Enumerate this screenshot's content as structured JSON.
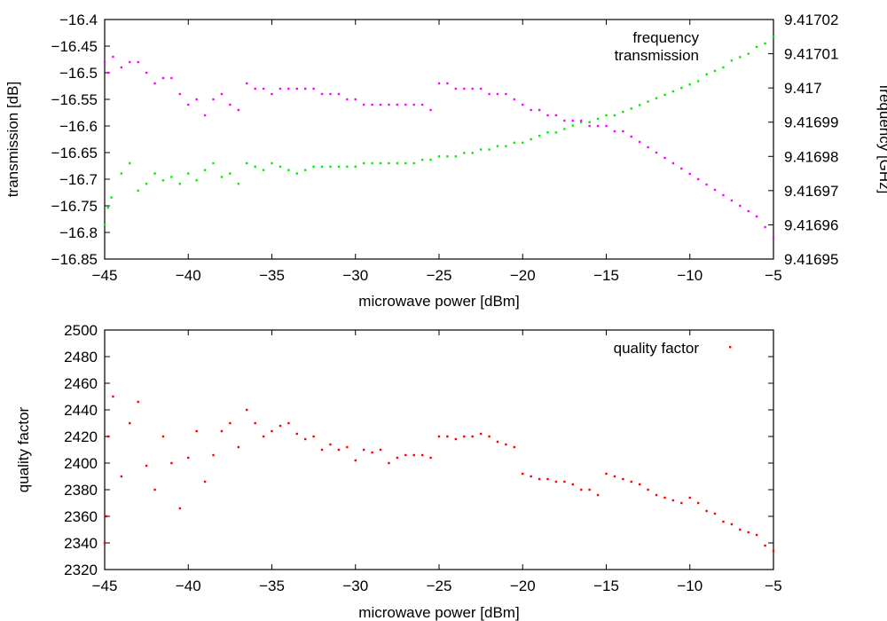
{
  "chart_data": [
    {
      "type": "scatter",
      "xlabel": "microwave power [dBm]",
      "ylabel": "transmission [dB]",
      "y2label": "frequency [GHz]",
      "xlim": [
        -45,
        -5
      ],
      "ylim": [
        -16.85,
        -16.4
      ],
      "y2lim": [
        9.41695,
        9.41702
      ],
      "xticks": [
        "−45",
        "−40",
        "−35",
        "−30",
        "−25",
        "−20",
        "−15",
        "−10",
        "−5"
      ],
      "yticks": [
        "−16.85",
        "−16.8",
        "−16.75",
        "−16.7",
        "−16.65",
        "−16.6",
        "−16.55",
        "−16.5",
        "−16.45",
        "−16.4"
      ],
      "y2ticks": [
        "9.41695",
        "9.41696",
        "9.41697",
        "9.41698",
        "9.41699",
        "9.417",
        "9.41701",
        "9.41702"
      ],
      "grid": false,
      "legend": "top-right",
      "series": [
        {
          "name": "frequency",
          "axis": "right",
          "color": "#00ee00",
          "points": [
            [
              -45,
              9.41696
            ],
            [
              -44.8,
              9.416965
            ],
            [
              -44.6,
              9.416968
            ],
            [
              -44,
              9.416975
            ],
            [
              -43.5,
              9.416978
            ],
            [
              -43,
              9.41697
            ],
            [
              -42.5,
              9.416972
            ],
            [
              -42,
              9.416975
            ],
            [
              -41.5,
              9.416973
            ],
            [
              -41,
              9.416974
            ],
            [
              -40.5,
              9.416972
            ],
            [
              -40,
              9.416975
            ],
            [
              -39.5,
              9.416973
            ],
            [
              -39,
              9.416976
            ],
            [
              -38.5,
              9.416978
            ],
            [
              -38,
              9.416974
            ],
            [
              -37.5,
              9.416975
            ],
            [
              -37,
              9.416972
            ],
            [
              -36.5,
              9.416978
            ],
            [
              -36,
              9.416977
            ],
            [
              -35.5,
              9.416976
            ],
            [
              -35,
              9.416978
            ],
            [
              -34.5,
              9.416977
            ],
            [
              -34,
              9.416976
            ],
            [
              -33.5,
              9.416975
            ],
            [
              -33,
              9.416976
            ],
            [
              -32.5,
              9.416977
            ],
            [
              -32,
              9.416977
            ],
            [
              -31.5,
              9.416977
            ],
            [
              -31,
              9.416977
            ],
            [
              -30.5,
              9.416977
            ],
            [
              -30,
              9.416977
            ],
            [
              -29.5,
              9.416978
            ],
            [
              -29,
              9.416978
            ],
            [
              -28.5,
              9.416978
            ],
            [
              -28,
              9.416978
            ],
            [
              -27.5,
              9.416978
            ],
            [
              -27,
              9.416978
            ],
            [
              -26.5,
              9.416978
            ],
            [
              -26,
              9.416979
            ],
            [
              -25.5,
              9.416979
            ],
            [
              -25,
              9.41698
            ],
            [
              -24.5,
              9.41698
            ],
            [
              -24,
              9.41698
            ],
            [
              -23.5,
              9.416981
            ],
            [
              -23,
              9.416981
            ],
            [
              -22.5,
              9.416982
            ],
            [
              -22,
              9.416982
            ],
            [
              -21.5,
              9.416983
            ],
            [
              -21,
              9.416983
            ],
            [
              -20.5,
              9.416984
            ],
            [
              -20,
              9.416984
            ],
            [
              -19.5,
              9.416985
            ],
            [
              -19,
              9.416986
            ],
            [
              -18.5,
              9.416987
            ],
            [
              -18,
              9.416987
            ],
            [
              -17.5,
              9.416988
            ],
            [
              -17,
              9.416989
            ],
            [
              -16.5,
              9.41699
            ],
            [
              -16,
              9.41699
            ],
            [
              -15.5,
              9.416991
            ],
            [
              -15,
              9.416992
            ],
            [
              -14.5,
              9.416992
            ],
            [
              -14,
              9.416993
            ],
            [
              -13.5,
              9.416994
            ],
            [
              -13,
              9.416995
            ],
            [
              -12.5,
              9.416996
            ],
            [
              -12,
              9.416997
            ],
            [
              -11.5,
              9.416998
            ],
            [
              -11,
              9.416999
            ],
            [
              -10.5,
              9.417
            ],
            [
              -10,
              9.417001
            ],
            [
              -9.5,
              9.417002
            ],
            [
              -9,
              9.417004
            ],
            [
              -8.5,
              9.417005
            ],
            [
              -8,
              9.417006
            ],
            [
              -7.5,
              9.417008
            ],
            [
              -7,
              9.417009
            ],
            [
              -6.5,
              9.41701
            ],
            [
              -6,
              9.417012
            ],
            [
              -5.5,
              9.417013
            ],
            [
              -5,
              9.417015
            ]
          ]
        },
        {
          "name": "transmission",
          "axis": "left",
          "color": "#ff00ff",
          "points": [
            [
              -45,
              -16.48
            ],
            [
              -44.8,
              -16.5
            ],
            [
              -44.5,
              -16.47
            ],
            [
              -44,
              -16.49
            ],
            [
              -43.5,
              -16.48
            ],
            [
              -43,
              -16.48
            ],
            [
              -42.5,
              -16.5
            ],
            [
              -42,
              -16.52
            ],
            [
              -41.5,
              -16.51
            ],
            [
              -41,
              -16.51
            ],
            [
              -40.5,
              -16.54
            ],
            [
              -40,
              -16.56
            ],
            [
              -39.5,
              -16.55
            ],
            [
              -39,
              -16.58
            ],
            [
              -38.5,
              -16.55
            ],
            [
              -38,
              -16.54
            ],
            [
              -37.5,
              -16.56
            ],
            [
              -37,
              -16.57
            ],
            [
              -36.5,
              -16.52
            ],
            [
              -36,
              -16.53
            ],
            [
              -35.5,
              -16.53
            ],
            [
              -35,
              -16.54
            ],
            [
              -34.5,
              -16.53
            ],
            [
              -34,
              -16.53
            ],
            [
              -33.5,
              -16.53
            ],
            [
              -33,
              -16.53
            ],
            [
              -32.5,
              -16.53
            ],
            [
              -32,
              -16.54
            ],
            [
              -31.5,
              -16.54
            ],
            [
              -31,
              -16.54
            ],
            [
              -30.5,
              -16.55
            ],
            [
              -30,
              -16.55
            ],
            [
              -29.5,
              -16.56
            ],
            [
              -29,
              -16.56
            ],
            [
              -28.5,
              -16.56
            ],
            [
              -28,
              -16.56
            ],
            [
              -27.5,
              -16.56
            ],
            [
              -27,
              -16.56
            ],
            [
              -26.5,
              -16.56
            ],
            [
              -26,
              -16.56
            ],
            [
              -25.5,
              -16.57
            ],
            [
              -25,
              -16.52
            ],
            [
              -24.5,
              -16.52
            ],
            [
              -24,
              -16.53
            ],
            [
              -23.5,
              -16.53
            ],
            [
              -23,
              -16.53
            ],
            [
              -22.5,
              -16.53
            ],
            [
              -22,
              -16.54
            ],
            [
              -21.5,
              -16.54
            ],
            [
              -21,
              -16.54
            ],
            [
              -20.5,
              -16.55
            ],
            [
              -20,
              -16.56
            ],
            [
              -19.5,
              -16.57
            ],
            [
              -19,
              -16.57
            ],
            [
              -18.5,
              -16.58
            ],
            [
              -18,
              -16.58
            ],
            [
              -17.5,
              -16.59
            ],
            [
              -17,
              -16.59
            ],
            [
              -16.5,
              -16.59
            ],
            [
              -16,
              -16.6
            ],
            [
              -15.5,
              -16.6
            ],
            [
              -15,
              -16.6
            ],
            [
              -14.5,
              -16.61
            ],
            [
              -14,
              -16.61
            ],
            [
              -13.5,
              -16.62
            ],
            [
              -13,
              -16.63
            ],
            [
              -12.5,
              -16.64
            ],
            [
              -12,
              -16.65
            ],
            [
              -11.5,
              -16.66
            ],
            [
              -11,
              -16.67
            ],
            [
              -10.5,
              -16.68
            ],
            [
              -10,
              -16.69
            ],
            [
              -9.5,
              -16.7
            ],
            [
              -9,
              -16.71
            ],
            [
              -8.5,
              -16.72
            ],
            [
              -8,
              -16.73
            ],
            [
              -7.5,
              -16.74
            ],
            [
              -7,
              -16.75
            ],
            [
              -6.5,
              -16.76
            ],
            [
              -6,
              -16.77
            ],
            [
              -5.5,
              -16.79
            ],
            [
              -5,
              -16.81
            ]
          ]
        }
      ]
    },
    {
      "type": "scatter",
      "xlabel": "microwave power [dBm]",
      "ylabel": "quality factor",
      "xlim": [
        -45,
        -5
      ],
      "ylim": [
        2320,
        2500
      ],
      "xticks": [
        "−45",
        "−40",
        "−35",
        "−30",
        "−25",
        "−20",
        "−15",
        "−10",
        "−5"
      ],
      "yticks": [
        "2320",
        "2340",
        "2360",
        "2380",
        "2400",
        "2420",
        "2440",
        "2460",
        "2480",
        "2500"
      ],
      "grid": false,
      "legend": "top-right",
      "series": [
        {
          "name": "quality factor",
          "color": "#ff0000",
          "points": [
            [
              -45,
              2340
            ],
            [
              -44.9,
              2360
            ],
            [
              -44.8,
              2420
            ],
            [
              -44.5,
              2450
            ],
            [
              -44,
              2390
            ],
            [
              -43.5,
              2430
            ],
            [
              -43,
              2446
            ],
            [
              -42.5,
              2398
            ],
            [
              -42,
              2380
            ],
            [
              -41.5,
              2420
            ],
            [
              -41,
              2400
            ],
            [
              -40.5,
              2366
            ],
            [
              -40,
              2404
            ],
            [
              -39.5,
              2424
            ],
            [
              -39,
              2386
            ],
            [
              -38.5,
              2406
            ],
            [
              -38,
              2424
            ],
            [
              -37.5,
              2430
            ],
            [
              -37,
              2412
            ],
            [
              -36.5,
              2440
            ],
            [
              -36,
              2430
            ],
            [
              -35.5,
              2420
            ],
            [
              -35,
              2424
            ],
            [
              -34.5,
              2428
            ],
            [
              -34,
              2430
            ],
            [
              -33.5,
              2422
            ],
            [
              -33,
              2418
            ],
            [
              -32.5,
              2420
            ],
            [
              -32,
              2410
            ],
            [
              -31.5,
              2414
            ],
            [
              -31,
              2410
            ],
            [
              -30.5,
              2412
            ],
            [
              -30,
              2402
            ],
            [
              -29.5,
              2410
            ],
            [
              -29,
              2408
            ],
            [
              -28.5,
              2410
            ],
            [
              -28,
              2400
            ],
            [
              -27.5,
              2404
            ],
            [
              -27,
              2406
            ],
            [
              -26.5,
              2406
            ],
            [
              -26,
              2406
            ],
            [
              -25.5,
              2404
            ],
            [
              -25,
              2420
            ],
            [
              -24.5,
              2420
            ],
            [
              -24,
              2418
            ],
            [
              -23.5,
              2420
            ],
            [
              -23,
              2420
            ],
            [
              -22.5,
              2422
            ],
            [
              -22,
              2420
            ],
            [
              -21.5,
              2416
            ],
            [
              -21,
              2414
            ],
            [
              -20.5,
              2412
            ],
            [
              -20,
              2392
            ],
            [
              -19.5,
              2390
            ],
            [
              -19,
              2388
            ],
            [
              -18.5,
              2388
            ],
            [
              -18,
              2386
            ],
            [
              -17.5,
              2386
            ],
            [
              -17,
              2384
            ],
            [
              -16.5,
              2380
            ],
            [
              -16,
              2380
            ],
            [
              -15.5,
              2376
            ],
            [
              -15,
              2392
            ],
            [
              -14.5,
              2390
            ],
            [
              -14,
              2388
            ],
            [
              -13.5,
              2386
            ],
            [
              -13,
              2384
            ],
            [
              -12.5,
              2380
            ],
            [
              -12,
              2376
            ],
            [
              -11.5,
              2374
            ],
            [
              -11,
              2372
            ],
            [
              -10.5,
              2370
            ],
            [
              -10,
              2374
            ],
            [
              -9.5,
              2370
            ],
            [
              -9,
              2364
            ],
            [
              -8.5,
              2362
            ],
            [
              -8,
              2356
            ],
            [
              -7.5,
              2354
            ],
            [
              -7,
              2350
            ],
            [
              -6.5,
              2348
            ],
            [
              -6,
              2346
            ],
            [
              -5.5,
              2338
            ],
            [
              -5,
              2334
            ]
          ]
        }
      ]
    }
  ]
}
